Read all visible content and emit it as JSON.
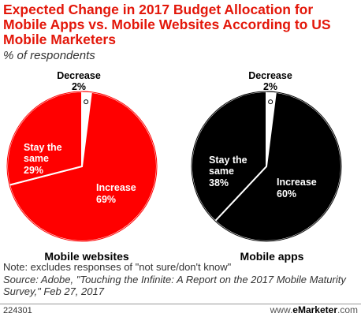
{
  "title": "Expected Change in 2017 Budget Allocation for Mobile Apps vs. Mobile Websites According to US Mobile Marketers",
  "subtitle": "% of respondents",
  "colors": {
    "accent": "#e3170a",
    "red": "#ff0000",
    "black": "#000000"
  },
  "chart_data": [
    {
      "type": "pie",
      "name": "Mobile websites",
      "slices": [
        {
          "label": "Decrease",
          "value": 2
        },
        {
          "label": "Increase",
          "value": 69
        },
        {
          "label": "Stay the same",
          "value": 29
        }
      ],
      "color": "#ff0000"
    },
    {
      "type": "pie",
      "name": "Mobile apps",
      "slices": [
        {
          "label": "Decrease",
          "value": 2
        },
        {
          "label": "Increase",
          "value": 60
        },
        {
          "label": "Stay the same",
          "value": 38
        }
      ],
      "color": "#000000"
    }
  ],
  "labels": {
    "web_decrease_name": "Decrease",
    "web_decrease_pct": "2%",
    "web_stay_line1": "Stay the",
    "web_stay_line2": "same",
    "web_stay_pct": "29%",
    "web_increase_name": "Increase",
    "web_increase_pct": "69%",
    "web_caption": "Mobile websites",
    "app_decrease_name": "Decrease",
    "app_decrease_pct": "2%",
    "app_stay_line1": "Stay the",
    "app_stay_line2": "same",
    "app_stay_pct": "38%",
    "app_increase_name": "Increase",
    "app_increase_pct": "60%",
    "app_caption": "Mobile apps"
  },
  "note": {
    "line1": "Note: excludes responses of \"not sure/don't know\"",
    "line2": "Source: Adobe, \"Touching the Infinite: A Report on the 2017 Mobile Maturity Survey,\" Feb 27, 2017"
  },
  "footer": {
    "id": "224301",
    "brand_prefix": "www.",
    "brand_name": "eMarketer",
    "brand_suffix": ".com"
  }
}
